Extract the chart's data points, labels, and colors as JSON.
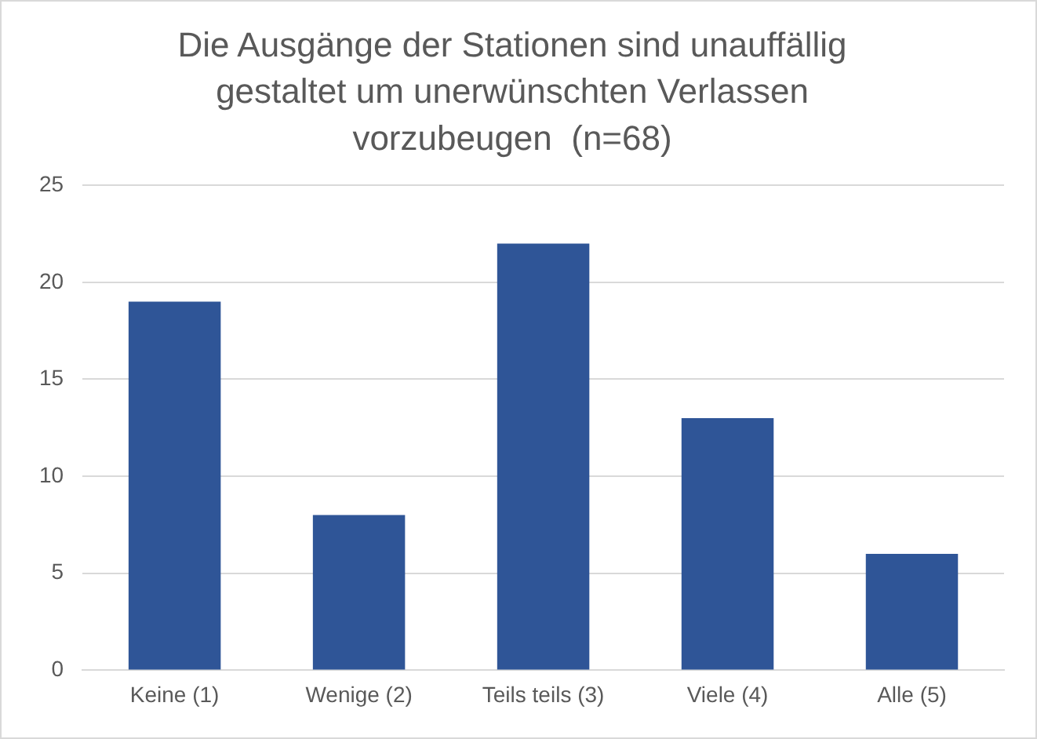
{
  "chart_data": {
    "type": "bar",
    "title": "Die Ausgänge der Stationen sind unauffällig gestaltet um unerwünschten Verlassen vorzubeugen  (n=68)",
    "categories": [
      "Keine (1)",
      "Wenige (2)",
      "Teils teils (3)",
      "Viele (4)",
      "Alle (5)"
    ],
    "values": [
      19,
      8,
      22,
      13,
      6
    ],
    "color": "#2f5597",
    "ylim": [
      0,
      25
    ],
    "yticks": [
      0,
      5,
      10,
      15,
      20,
      25
    ],
    "grid": "y",
    "legend": false
  }
}
